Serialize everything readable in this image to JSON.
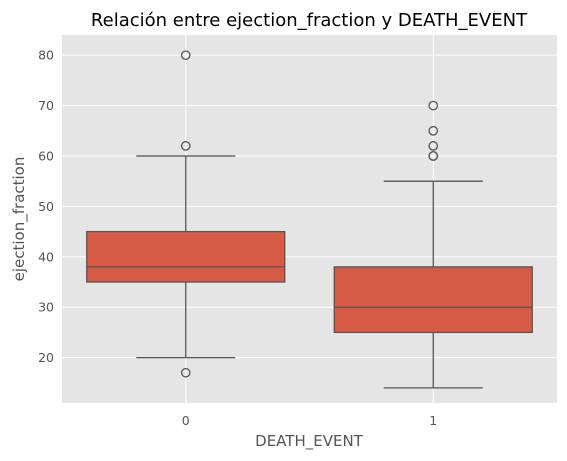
{
  "chart_data": {
    "type": "box",
    "title": "Relación entre ejection_fraction y DEATH_EVENT",
    "xlabel": "DEATH_EVENT",
    "ylabel": "ejection_fraction",
    "categories": [
      "0",
      "1"
    ],
    "ylim": [
      11,
      84
    ],
    "yticks": [
      20,
      30,
      40,
      50,
      60,
      70,
      80
    ],
    "grid": true,
    "colors": {
      "background": "#E5E5E5",
      "grid": "#FFFFFF",
      "box_fill": "#D55B45",
      "line": "#555555"
    },
    "boxes": [
      {
        "category": "0",
        "whisker_low": 20,
        "q1": 35,
        "median": 38,
        "q3": 45,
        "whisker_high": 60,
        "outliers": [
          17,
          62,
          80
        ]
      },
      {
        "category": "1",
        "whisker_low": 14,
        "q1": 25,
        "median": 30,
        "q3": 38,
        "whisker_high": 55,
        "outliers": [
          60,
          60,
          62,
          65,
          70
        ]
      }
    ]
  }
}
